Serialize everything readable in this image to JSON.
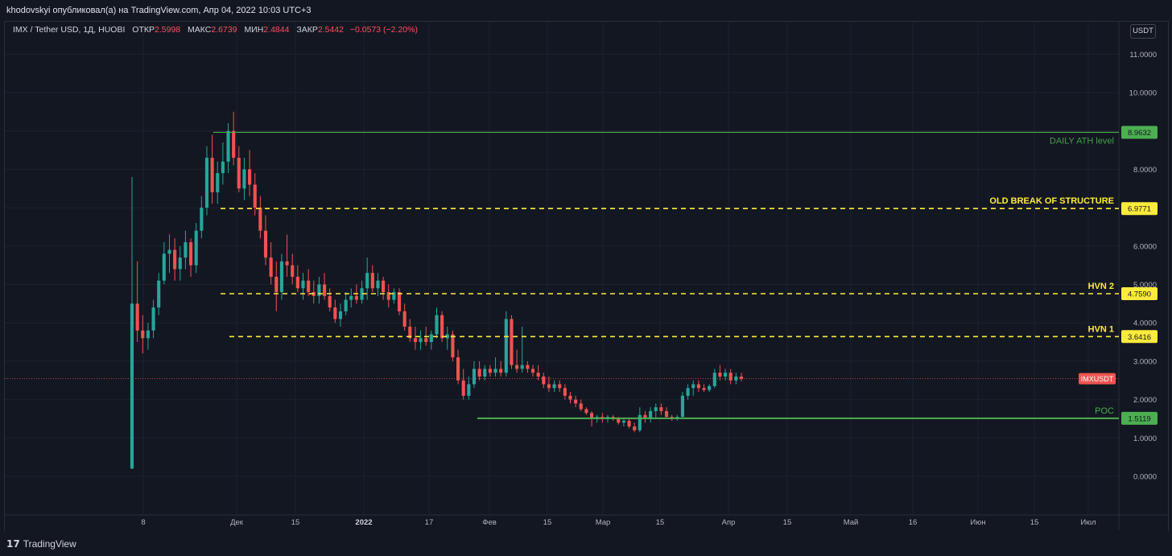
{
  "header": {
    "published": "khodovskyi опубликовал(а) на TradingView.com, Апр 04, 2022 10:03 UTC+3"
  },
  "legend": {
    "symbol": "IMX / Tether USD, 1Д, HUOBI",
    "open_label": "ОТКР",
    "open": "2.5998",
    "high_label": "МАКС",
    "high": "2.6739",
    "low_label": "МИН",
    "low": "2.4844",
    "close_label": "ЗАКР",
    "close": "2.5442",
    "change": "−0.0573 (−2.20%)"
  },
  "currency_button": "USDT",
  "footer": {
    "brand_icon": "tradingview-logo-icon",
    "brand": "TradingView"
  },
  "colors": {
    "up": "#26a69a",
    "down": "#ef5350",
    "green_line": "#4caf50",
    "yellow_line": "#ffeb3b",
    "background": "#131722"
  },
  "chart_data": {
    "type": "candlestick",
    "ylim": [
      -0.6,
      11.6
    ],
    "y_ticks": [
      "0.0000",
      "1.0000",
      "2.0000",
      "3.0000",
      "4.0000",
      "5.0000",
      "6.0000",
      "7.0000",
      "8.0000",
      "9.0000",
      "10.0000",
      "11.0000"
    ],
    "x_ticks": [
      "8",
      "Дек",
      "15",
      "2022",
      "17",
      "Фев",
      "15",
      "Мар",
      "15",
      "Апр",
      "15",
      "Май",
      "16",
      "Июн",
      "15",
      "Июл"
    ],
    "x_bold_tick": "2022",
    "last_price": {
      "value": 2.5442,
      "label": "IMXUSDT"
    },
    "levels": [
      {
        "name": "DAILY ATH level",
        "value": 8.9632,
        "value_label": "8.9632",
        "style": "solid",
        "color": "#4caf50"
      },
      {
        "name": "OLD BREAK OF STRUCTURE",
        "value": 6.9771,
        "value_label": "6.9771",
        "style": "dashed",
        "color": "#ffeb3b"
      },
      {
        "name": "HVN 2",
        "value": 4.759,
        "value_label": "4.7590",
        "style": "dashed",
        "color": "#ffeb3b"
      },
      {
        "name": "HVN 1",
        "value": 3.6416,
        "value_label": "3.6416",
        "style": "dashed",
        "color": "#ffeb3b"
      },
      {
        "name": "POC",
        "value": 1.5119,
        "value_label": "1.5119",
        "style": "solid",
        "color": "#4caf50"
      }
    ],
    "candles_ohlc": [
      [
        0.2,
        7.8,
        0.2,
        4.5
      ],
      [
        4.5,
        5.6,
        3.5,
        3.8
      ],
      [
        3.8,
        4.2,
        3.2,
        3.6
      ],
      [
        3.6,
        4.0,
        3.3,
        3.8
      ],
      [
        3.8,
        4.6,
        3.6,
        4.4
      ],
      [
        4.4,
        5.3,
        4.2,
        5.1
      ],
      [
        5.1,
        6.1,
        5.0,
        5.8
      ],
      [
        5.8,
        6.3,
        5.3,
        5.9
      ],
      [
        5.9,
        6.2,
        5.1,
        5.4
      ],
      [
        5.4,
        6.0,
        5.1,
        5.7
      ],
      [
        5.7,
        6.4,
        5.4,
        6.1
      ],
      [
        6.1,
        6.2,
        5.2,
        5.5
      ],
      [
        5.5,
        6.6,
        5.3,
        6.4
      ],
      [
        6.4,
        7.3,
        6.2,
        7.0
      ],
      [
        7.0,
        8.6,
        6.8,
        8.3
      ],
      [
        8.3,
        8.9,
        7.1,
        7.4
      ],
      [
        7.4,
        8.2,
        7.1,
        7.9
      ],
      [
        7.9,
        8.7,
        7.6,
        8.2
      ],
      [
        8.2,
        9.2,
        7.9,
        9.0
      ],
      [
        9.0,
        9.5,
        8.1,
        8.3
      ],
      [
        8.3,
        8.6,
        7.4,
        7.5
      ],
      [
        7.5,
        8.3,
        7.2,
        8.0
      ],
      [
        8.0,
        8.5,
        7.3,
        7.6
      ],
      [
        7.6,
        7.9,
        6.8,
        7.0
      ],
      [
        7.0,
        7.3,
        6.2,
        6.4
      ],
      [
        6.4,
        6.8,
        5.5,
        5.7
      ],
      [
        5.7,
        6.1,
        5.0,
        5.2
      ],
      [
        5.2,
        5.6,
        4.3,
        4.8
      ],
      [
        4.8,
        5.8,
        4.6,
        5.6
      ],
      [
        5.6,
        6.3,
        5.2,
        5.5
      ],
      [
        5.5,
        5.8,
        5.0,
        5.2
      ],
      [
        5.2,
        5.5,
        4.8,
        4.9
      ],
      [
        4.9,
        5.3,
        4.6,
        5.1
      ],
      [
        5.1,
        5.4,
        4.7,
        4.8
      ],
      [
        4.8,
        5.1,
        4.5,
        4.7
      ],
      [
        4.7,
        5.2,
        4.5,
        5.0
      ],
      [
        5.0,
        5.3,
        4.6,
        4.7
      ],
      [
        4.7,
        4.9,
        4.3,
        4.4
      ],
      [
        4.4,
        4.6,
        4.0,
        4.1
      ],
      [
        4.1,
        4.5,
        3.9,
        4.3
      ],
      [
        4.3,
        4.8,
        4.2,
        4.6
      ],
      [
        4.6,
        4.9,
        4.4,
        4.7
      ],
      [
        4.7,
        5.0,
        4.5,
        4.6
      ],
      [
        4.6,
        5.1,
        4.5,
        4.9
      ],
      [
        4.9,
        5.7,
        4.6,
        5.3
      ],
      [
        5.3,
        5.5,
        4.8,
        4.9
      ],
      [
        4.9,
        5.3,
        4.7,
        5.1
      ],
      [
        5.1,
        5.2,
        4.6,
        4.8
      ],
      [
        4.8,
        5.0,
        4.4,
        4.6
      ],
      [
        4.6,
        4.9,
        4.5,
        4.8
      ],
      [
        4.8,
        4.9,
        4.2,
        4.3
      ],
      [
        4.3,
        4.5,
        3.8,
        3.9
      ],
      [
        3.9,
        4.1,
        3.5,
        3.6
      ],
      [
        3.6,
        3.9,
        3.3,
        3.5
      ],
      [
        3.5,
        3.8,
        3.3,
        3.6
      ],
      [
        3.6,
        3.9,
        3.4,
        3.5
      ],
      [
        3.5,
        3.8,
        3.3,
        3.7
      ],
      [
        3.7,
        4.4,
        3.6,
        4.2
      ],
      [
        4.2,
        4.3,
        3.5,
        3.6
      ],
      [
        3.6,
        3.9,
        3.3,
        3.7
      ],
      [
        3.7,
        3.8,
        3.0,
        3.1
      ],
      [
        3.1,
        3.3,
        2.4,
        2.5
      ],
      [
        2.5,
        2.8,
        2.0,
        2.1
      ],
      [
        2.1,
        2.6,
        2.0,
        2.4
      ],
      [
        2.4,
        3.0,
        2.3,
        2.8
      ],
      [
        2.8,
        3.0,
        2.5,
        2.6
      ],
      [
        2.6,
        2.9,
        2.5,
        2.8
      ],
      [
        2.8,
        2.9,
        2.6,
        2.7
      ],
      [
        2.7,
        3.1,
        2.6,
        2.8
      ],
      [
        2.8,
        3.0,
        2.6,
        2.7
      ],
      [
        2.7,
        4.3,
        2.6,
        4.1
      ],
      [
        4.1,
        4.2,
        2.8,
        2.9
      ],
      [
        2.9,
        3.3,
        2.7,
        2.8
      ],
      [
        2.8,
        3.9,
        2.7,
        2.9
      ],
      [
        2.9,
        3.0,
        2.7,
        2.8
      ],
      [
        2.8,
        2.9,
        2.6,
        2.7
      ],
      [
        2.7,
        2.9,
        2.5,
        2.6
      ],
      [
        2.6,
        2.7,
        2.3,
        2.4
      ],
      [
        2.4,
        2.6,
        2.2,
        2.3
      ],
      [
        2.3,
        2.5,
        2.2,
        2.4
      ],
      [
        2.4,
        2.5,
        2.2,
        2.3
      ],
      [
        2.3,
        2.4,
        2.0,
        2.1
      ],
      [
        2.1,
        2.2,
        1.9,
        2.0
      ],
      [
        2.0,
        2.1,
        1.8,
        1.9
      ],
      [
        1.9,
        2.0,
        1.7,
        1.75
      ],
      [
        1.75,
        1.8,
        1.6,
        1.65
      ],
      [
        1.65,
        1.7,
        1.3,
        1.5
      ],
      [
        1.5,
        1.6,
        1.4,
        1.55
      ],
      [
        1.55,
        1.65,
        1.4,
        1.5
      ],
      [
        1.5,
        1.6,
        1.4,
        1.55
      ],
      [
        1.55,
        1.6,
        1.45,
        1.5
      ],
      [
        1.5,
        1.55,
        1.35,
        1.4
      ],
      [
        1.4,
        1.5,
        1.3,
        1.45
      ],
      [
        1.45,
        1.5,
        1.25,
        1.3
      ],
      [
        1.3,
        1.4,
        1.15,
        1.2
      ],
      [
        1.2,
        1.8,
        1.15,
        1.6
      ],
      [
        1.6,
        1.7,
        1.4,
        1.5
      ],
      [
        1.5,
        1.8,
        1.4,
        1.7
      ],
      [
        1.7,
        1.9,
        1.5,
        1.8
      ],
      [
        1.8,
        1.9,
        1.6,
        1.7
      ],
      [
        1.7,
        1.8,
        1.5,
        1.55
      ],
      [
        1.55,
        1.6,
        1.45,
        1.5
      ],
      [
        1.5,
        1.6,
        1.45,
        1.55
      ],
      [
        1.55,
        2.2,
        1.5,
        2.1
      ],
      [
        2.1,
        2.4,
        2.0,
        2.3
      ],
      [
        2.3,
        2.5,
        2.1,
        2.4
      ],
      [
        2.4,
        2.5,
        2.2,
        2.3
      ],
      [
        2.3,
        2.4,
        2.2,
        2.25
      ],
      [
        2.25,
        2.4,
        2.2,
        2.35
      ],
      [
        2.35,
        2.8,
        2.3,
        2.7
      ],
      [
        2.7,
        2.9,
        2.5,
        2.6
      ],
      [
        2.6,
        2.8,
        2.5,
        2.7
      ],
      [
        2.7,
        2.8,
        2.4,
        2.5
      ],
      [
        2.5,
        2.7,
        2.4,
        2.6
      ],
      [
        2.6,
        2.7,
        2.48,
        2.54
      ]
    ]
  }
}
